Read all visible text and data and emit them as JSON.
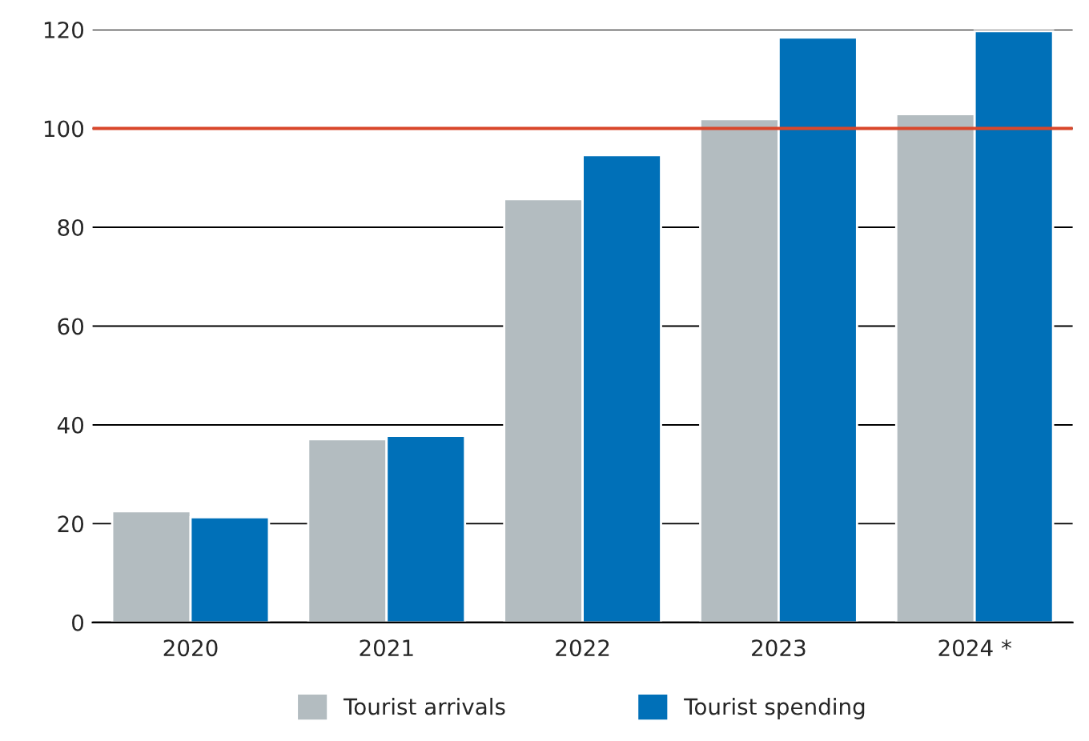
{
  "chart_data": {
    "type": "bar",
    "categories": [
      "2020",
      "2021",
      "2022",
      "2023",
      "2024 *"
    ],
    "series": [
      {
        "name": "Tourist arrivals",
        "color": "#b3bcc0",
        "values": [
          22.5,
          37.1,
          85.7,
          101.9,
          102.9
        ]
      },
      {
        "name": "Tourist spending",
        "color": "#0070b8",
        "values": [
          21.3,
          37.8,
          94.6,
          118.4,
          119.7
        ]
      }
    ],
    "ylim": [
      0,
      120
    ],
    "yticks": [
      0,
      20,
      40,
      60,
      80,
      100,
      120
    ],
    "ref_lines": [
      {
        "axis": "y",
        "value": 100,
        "color": "#d9472b"
      }
    ],
    "grid": "y",
    "legend": "bottom"
  }
}
